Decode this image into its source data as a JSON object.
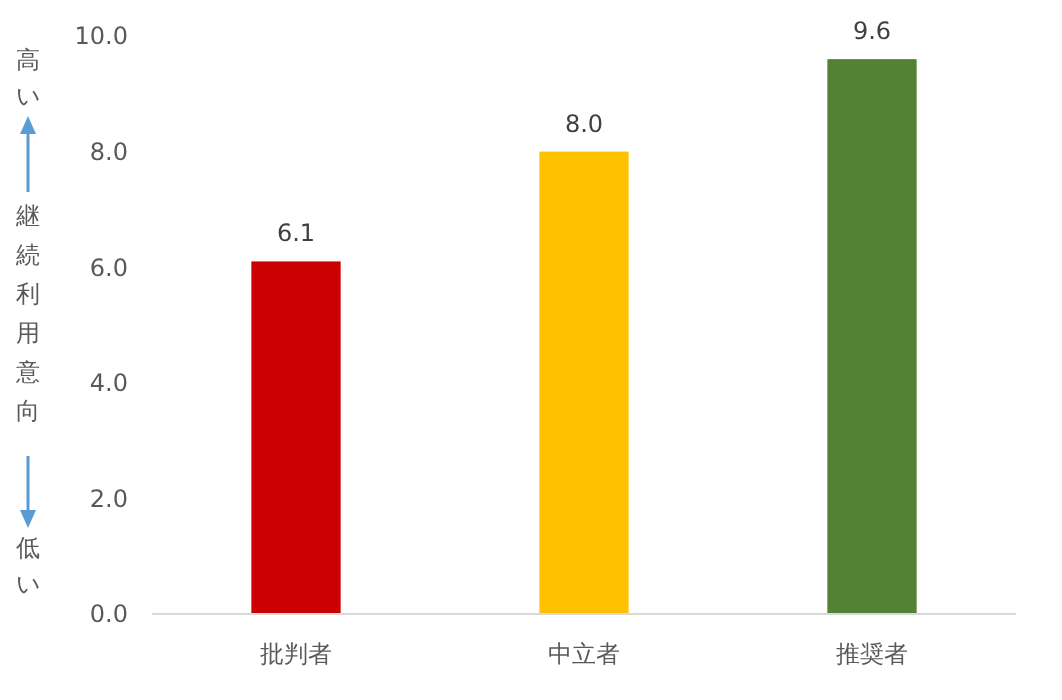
{
  "chart_data": {
    "type": "bar",
    "ylabel": "継続利用意向",
    "annotations": [
      "高い",
      "低い"
    ],
    "categories": [
      "批判者",
      "中立者",
      "推奨者"
    ],
    "values": [
      6.1,
      8.0,
      9.6
    ],
    "colors": [
      "#cc0000",
      "#ffc000",
      "#548235"
    ],
    "ylim": [
      0,
      10
    ],
    "yticks": [
      {
        "value": 0,
        "label": "0.0"
      },
      {
        "value": 2,
        "label": "2.0"
      },
      {
        "value": 4,
        "label": "4.0"
      },
      {
        "value": 6,
        "label": "6.0"
      },
      {
        "value": 8,
        "label": "8.0"
      },
      {
        "value": 10,
        "label": "10.0"
      }
    ],
    "value_labels": [
      "6.1",
      "8.0",
      "9.6"
    ],
    "grid": false
  }
}
